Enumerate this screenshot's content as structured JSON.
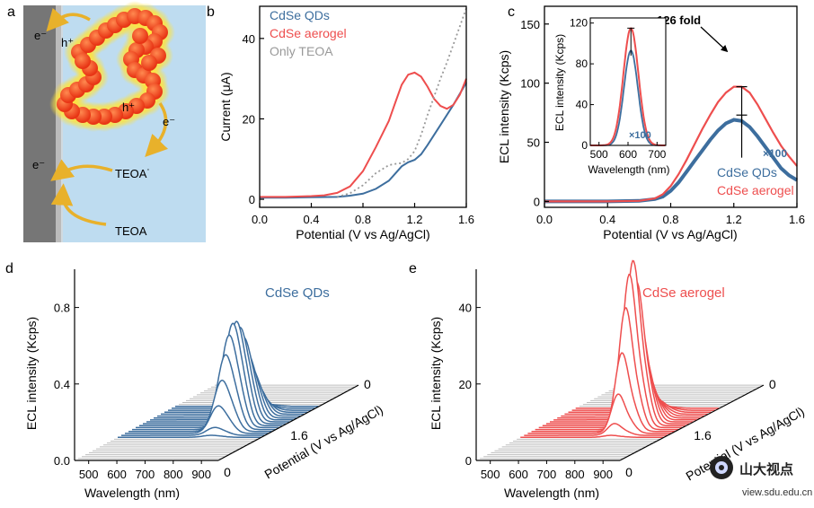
{
  "colors": {
    "qd": "#3d6e9e",
    "aero": "#ee4e4e",
    "teoa": "#999999",
    "schematic_bg": "#bedcf0",
    "electrode": "#767676",
    "arrow": "#e8b12b",
    "particle": "#f04a22",
    "glow": "#fff23a",
    "grey_trace": "#bdbdbd"
  },
  "panel_labels": {
    "a": "a",
    "b": "b",
    "c": "c",
    "d": "d",
    "e": "e"
  },
  "schematic": {
    "electron_top": "e⁻",
    "electron_mid": "e⁻",
    "electron_bottom": "e⁻",
    "hole_top": "h⁺",
    "hole_mid": "h⁺",
    "teoa_radical": "TEOA˙",
    "teoa": "TEOA"
  },
  "watermark": {
    "text": "山大视点",
    "url": "view.sdu.edu.cn"
  },
  "chart_data": [
    {
      "id": "b",
      "type": "line",
      "xlabel": "Potential (V vs Ag/AgCl)",
      "ylabel": "Current (μA)",
      "xlim": [
        0.0,
        1.6
      ],
      "ylim": [
        -2,
        48
      ],
      "xticks": [
        "0.0",
        "0.4",
        "0.8",
        "1.2",
        "1.6"
      ],
      "xtick_values": [
        0.0,
        0.4,
        0.8,
        1.2,
        1.6
      ],
      "yticks": [
        "0",
        "20",
        "40"
      ],
      "ytick_values": [
        0,
        20,
        40
      ],
      "legend": [
        "CdSe QDs",
        "CdSe aerogel",
        "Only TEOA"
      ],
      "series": [
        {
          "name": "CdSe QDs",
          "style": "solid",
          "x": [
            0.0,
            0.2,
            0.4,
            0.6,
            0.7,
            0.8,
            0.9,
            1.0,
            1.05,
            1.1,
            1.15,
            1.2,
            1.25,
            1.3,
            1.4,
            1.5,
            1.6
          ],
          "y": [
            0.4,
            0.4,
            0.5,
            0.6,
            0.9,
            1.4,
            2.6,
            4.6,
            6.4,
            8.2,
            9.2,
            9.8,
            11.2,
            13.5,
            18.5,
            23.5,
            29.0
          ]
        },
        {
          "name": "CdSe aerogel",
          "style": "solid",
          "x": [
            0.0,
            0.2,
            0.4,
            0.5,
            0.6,
            0.7,
            0.8,
            0.9,
            1.0,
            1.05,
            1.1,
            1.15,
            1.2,
            1.25,
            1.3,
            1.35,
            1.4,
            1.45,
            1.5,
            1.55,
            1.6
          ],
          "y": [
            0.6,
            0.6,
            0.8,
            1.0,
            1.6,
            3.2,
            7.0,
            13.0,
            19.5,
            24.0,
            28.5,
            31.0,
            31.5,
            30.5,
            28.0,
            25.0,
            23.2,
            22.5,
            23.5,
            26.0,
            30.0
          ]
        },
        {
          "name": "Only TEOA",
          "style": "dotted",
          "x": [
            0.6,
            0.7,
            0.8,
            0.9,
            1.0,
            1.05,
            1.1,
            1.15,
            1.2,
            1.25,
            1.3,
            1.35,
            1.4,
            1.45,
            1.5,
            1.55,
            1.6
          ],
          "y": [
            0.6,
            1.5,
            3.5,
            6.5,
            8.5,
            8.8,
            9.0,
            10.0,
            12.0,
            16.0,
            21.0,
            25.5,
            30.0,
            34.0,
            38.5,
            43.0,
            47.5
          ]
        }
      ]
    },
    {
      "id": "c",
      "type": "line",
      "xlabel": "Potential (V vs Ag/AgCl)",
      "ylabel": "ECL intensity (Kcps)",
      "xlim": [
        0.0,
        1.6
      ],
      "ylim": [
        -5,
        165
      ],
      "xticks": [
        "0.0",
        "0.4",
        "0.8",
        "1.2",
        "1.6"
      ],
      "xtick_values": [
        0.0,
        0.4,
        0.8,
        1.2,
        1.6
      ],
      "yticks": [
        "0",
        "50",
        "100",
        "150"
      ],
      "ytick_values": [
        0,
        50,
        100,
        150
      ],
      "legend": [
        "CdSe QDs",
        "CdSe aerogel"
      ],
      "annotations": [
        "126 fold",
        "×100"
      ],
      "series": [
        {
          "name": "CdSe QDs",
          "x": [
            0.0,
            0.4,
            0.6,
            0.7,
            0.75,
            0.8,
            0.85,
            0.9,
            0.95,
            1.0,
            1.05,
            1.1,
            1.15,
            1.2,
            1.25,
            1.3,
            1.35,
            1.4,
            1.45,
            1.5,
            1.55,
            1.6
          ],
          "y": [
            0,
            0,
            0.5,
            2,
            4,
            9,
            16,
            25,
            34,
            43,
            52,
            60,
            66,
            69,
            68,
            63,
            55,
            46,
            37,
            28,
            22,
            18
          ]
        },
        {
          "name": "CdSe aerogel",
          "x": [
            0.0,
            0.4,
            0.6,
            0.7,
            0.75,
            0.8,
            0.85,
            0.9,
            0.95,
            1.0,
            1.05,
            1.1,
            1.15,
            1.2,
            1.25,
            1.3,
            1.35,
            1.4,
            1.45,
            1.5,
            1.55,
            1.6
          ],
          "y": [
            0,
            0,
            0.5,
            2.5,
            6,
            13,
            23,
            35,
            48,
            61,
            73,
            84,
            92,
            97,
            97,
            92,
            82,
            70,
            58,
            47,
            38,
            30
          ]
        }
      ],
      "errorbars": [
        {
          "x": 1.25,
          "y": 97,
          "low": 37,
          "high": 97
        },
        {
          "x": 1.25,
          "y": 68,
          "low": 63,
          "high": 73
        }
      ],
      "inset": {
        "type": "line",
        "xlabel": "Wavelength (nm)",
        "ylabel": "ECL intensity (Kcps)",
        "xlim": [
          470,
          730
        ],
        "ylim": [
          0,
          125
        ],
        "xticks": [
          "500",
          "600",
          "700"
        ],
        "xtick_values": [
          500,
          600,
          700
        ],
        "yticks": [
          "0",
          "40",
          "80",
          "120"
        ],
        "ytick_values": [
          0,
          40,
          80,
          120
        ],
        "series": [
          {
            "name": "CdSe QDs",
            "center": 610,
            "sigma": 24,
            "peak": 93
          },
          {
            "name": "CdSe aerogel",
            "center": 610,
            "sigma": 26,
            "peak": 115
          }
        ]
      }
    },
    {
      "id": "d",
      "type": "line",
      "xlabel": "Wavelength (nm)",
      "ylabel": "ECL intensity (Kcps)",
      "zlabel": "Potential (V vs Ag/AgCl)",
      "series_label": "CdSe QDs",
      "xticks": [
        "500",
        "600",
        "700",
        "800",
        "900"
      ],
      "yticks": [
        "0.0",
        "0.4",
        "0.8"
      ],
      "ytick_values": [
        0.0,
        0.4,
        0.8
      ],
      "ymax": 1.0,
      "zticks": [
        "0",
        "1.6",
        "0"
      ],
      "peak_wavelength": 780,
      "peak_heights": [
        0.0,
        0.0,
        0.0,
        0.0,
        0.0,
        0.0,
        0.0,
        0.0,
        0.0,
        0.0,
        0.0,
        0.0,
        0.01,
        0.04,
        0.14,
        0.26,
        0.38,
        0.47,
        0.52,
        0.52,
        0.48,
        0.42,
        0.33,
        0.25,
        0.17,
        0.1,
        0.05,
        0.02,
        0.01,
        0.0,
        0.0,
        0.0,
        0.0,
        0.0,
        0.0,
        0.0,
        0.0,
        0.0,
        0.0,
        0.0
      ]
    },
    {
      "id": "e",
      "type": "line",
      "xlabel": "Wavelength (nm)",
      "ylabel": "ECL intensity (Kcps)",
      "zlabel": "Potential (V vs Ag/AgCl)",
      "series_label": "CdSe aerogel",
      "xticks": [
        "500",
        "600",
        "700",
        "800",
        "900"
      ],
      "yticks": [
        "0",
        "20",
        "40"
      ],
      "ytick_values": [
        0,
        20,
        40
      ],
      "ymax": 50,
      "zticks": [
        "0",
        "1.6",
        "0"
      ],
      "peak_wavelength": 770,
      "peak_heights": [
        0.0,
        0.0,
        0.0,
        0.0,
        0.0,
        0.0,
        0.0,
        0.0,
        0.0,
        0.0,
        0.0,
        0.0,
        0.5,
        3,
        10,
        20,
        31,
        39,
        42,
        36,
        25,
        17,
        11,
        7,
        4.5,
        3,
        1.5,
        0.5,
        0.0,
        0.0,
        0.0,
        0.0,
        0.0,
        0.0,
        0.0,
        0.0,
        0.0,
        0.0,
        0.0,
        0.0
      ]
    }
  ]
}
